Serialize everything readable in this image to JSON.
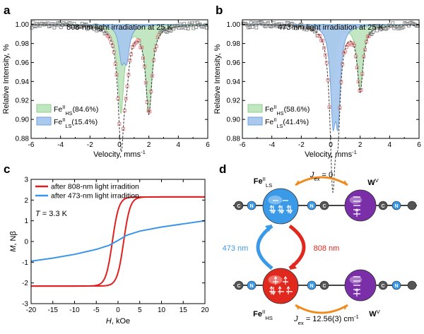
{
  "panels": {
    "a": {
      "label": "a",
      "chart_data": {
        "type": "scatter",
        "title": "808-nm light irradiation at 25 K",
        "xlabel": "Velocity, mms",
        "xlabel_sup": "-1",
        "ylabel": "Relative Intensity, %",
        "xlim": [
          -6,
          6
        ],
        "ylim": [
          0.88,
          1.005
        ],
        "xticks": [
          "-6",
          "-4",
          "-2",
          "0",
          "2",
          "4",
          "6"
        ],
        "yticks": [
          "0.88",
          "0.90",
          "0.92",
          "0.94",
          "0.96",
          "0.98",
          "1.00"
        ],
        "series": [
          {
            "sub": "HS",
            "pct": "(84.6%)",
            "color": "#bfe6bf",
            "edge": "#8fcf8f",
            "doublet": {
              "center": 1.05,
              "split": 1.9,
              "depth": 0.092,
              "width": 0.26
            }
          },
          {
            "sub": "LS",
            "pct": "(15.4%)",
            "color": "#a9c9ef",
            "edge": "#6e9fd8",
            "doublet": {
              "center": 0.32,
              "split": 0.35,
              "depth": 0.033,
              "width": 0.22
            }
          }
        ],
        "legend_prefix": "Fe",
        "legend_sup": "II",
        "legend_pos": "bottom-left"
      }
    },
    "b": {
      "label": "b",
      "chart_data": {
        "type": "scatter",
        "title": "473-nm light irradiation at 25 K",
        "xlabel": "Velocity, mms",
        "xlabel_sup": "-1",
        "ylabel": "Relative Intensity, %",
        "xlim": [
          -6,
          6
        ],
        "ylim": [
          0.88,
          1.005
        ],
        "xticks": [
          "-6",
          "-4",
          "-2",
          "0",
          "2",
          "4",
          "6"
        ],
        "yticks": [
          "0.88",
          "0.90",
          "0.92",
          "0.94",
          "0.96",
          "0.98",
          "1.00"
        ],
        "series": [
          {
            "sub": "HS",
            "pct": "(58.6%)",
            "color": "#bfe6bf",
            "edge": "#8fcf8f",
            "doublet": {
              "center": 1.05,
              "split": 1.9,
              "depth": 0.068,
              "width": 0.24
            }
          },
          {
            "sub": "LS",
            "pct": "(41.4%)",
            "color": "#a9c9ef",
            "edge": "#6e9fd8",
            "doublet": {
              "center": 0.32,
              "split": 0.34,
              "depth": 0.088,
              "width": 0.2
            }
          }
        ],
        "legend_prefix": "Fe",
        "legend_sup": "II",
        "legend_pos": "bottom-left"
      }
    },
    "c": {
      "label": "c",
      "chart_data": {
        "type": "line",
        "xlabel": "H",
        "xlabel_unit": ", kOe",
        "ylabel": "M",
        "ylabel_unit": ", Nβ",
        "xlim": [
          -20,
          20
        ],
        "ylim": [
          -3,
          3
        ],
        "xticks": [
          "-20",
          "-15",
          "-10",
          "-5",
          "0",
          "5",
          "10",
          "15",
          "20"
        ],
        "yticks": [
          "-3",
          "-2",
          "-1",
          "0",
          "1",
          "2",
          "3"
        ],
        "annotation_var": "T",
        "annotation_rest": " = 3.3 K",
        "series": [
          {
            "name": "after 808-nm light irradition",
            "color": "#e02020",
            "sat": 2.15,
            "coercive": 1.3,
            "hc_width": 1.5
          },
          {
            "name": "after 473-nm light irradition",
            "color": "#3a95e8",
            "x": [
              -20,
              -15,
              -10,
              -5,
              -2,
              0,
              2,
              5,
              10,
              15,
              20
            ],
            "y": [
              -0.95,
              -0.8,
              -0.62,
              -0.38,
              -0.18,
              0.05,
              0.3,
              0.5,
              0.7,
              0.85,
              1.0
            ]
          }
        ],
        "legend_pos": "top-left"
      }
    },
    "d": {
      "label": "d",
      "jex_top_var": "J",
      "jex_top_sub": "ex",
      "jex_top_rest": " = 0",
      "jex_bot_var": "J",
      "jex_bot_sub": "ex",
      "jex_bot_rest": " = 12.56(3) cm",
      "jex_bot_sup": "-1",
      "fe_ls_main": "Fe",
      "fe_ls_sup": "II",
      "fe_ls_sub": "LS",
      "fe_hs_main": "Fe",
      "fe_hs_sup": "II",
      "fe_hs_sub": "HS",
      "w_main": "W",
      "w_sup": "V",
      "arrow_left": "473 nm",
      "arrow_right": "808 nm",
      "chain_c": "C",
      "chain_n": "N",
      "colors": {
        "ls": "#3b9ae8",
        "hs": "#e0281e",
        "w": "#7a2ea8",
        "blue_arrow": "#3b9ae8",
        "red_arrow": "#e0281e",
        "orange": "#f08a1e"
      }
    }
  }
}
